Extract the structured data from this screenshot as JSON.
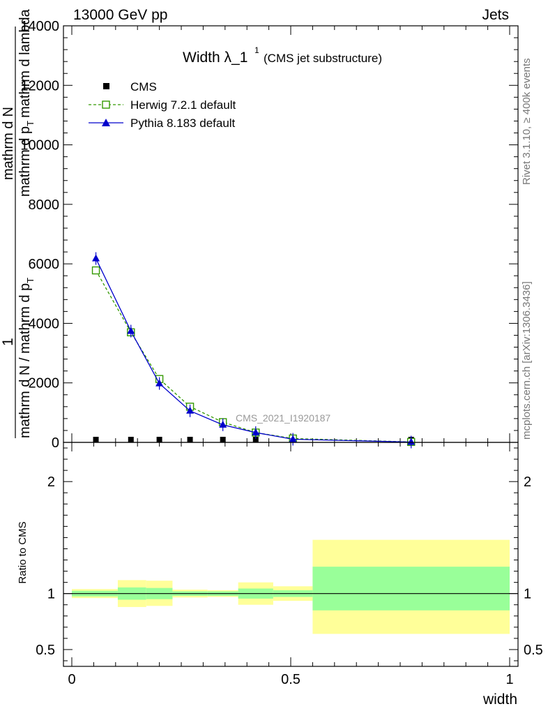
{
  "header": {
    "energy_label": "13000 GeV pp",
    "category_label": "Jets"
  },
  "side_labels": {
    "rivet": "Rivet 3.1.10, ≥ 400k events",
    "mcplots": "mcplots.cern.ch [arXiv:1306.3436]"
  },
  "chart_data": [
    {
      "type": "line",
      "title": "Width λ_1",
      "title_sup": "1",
      "subtitle": "(CMS jet substructure)",
      "watermark": "CMS_2021_I1920187",
      "ylabel_num": "1",
      "ylabel_lines": [
        "mathrm d N / mathrm d p_T",
        "mathrm d N",
        "mathrm d p_T mathrm d lambda"
      ],
      "ylabel_line1": "mathrm d N / mathrm d p_T",
      "ylabel_line2_a": "mathrm d",
      "ylabel_line2_b": "N",
      "ylabel_line3_a": "mathrm d p",
      "ylabel_line3_sub": "T",
      "ylabel_line3_b": "mathrm d lambda",
      "ylabel_line1_a": "mathrm d N / mathrm d p",
      "ylabel_line1_sub": "T",
      "xlim": [
        0,
        1
      ],
      "ylim": [
        0,
        14000
      ],
      "yticks": [
        0,
        2000,
        4000,
        6000,
        8000,
        10000,
        12000,
        14000
      ],
      "ytick_labels": [
        "0",
        "2000",
        "4000",
        "6000",
        "8000",
        "10000",
        "12000",
        "14000"
      ],
      "legend_position": "top-left",
      "bin_edges": [
        0,
        0.105,
        0.17,
        0.23,
        0.31,
        0.38,
        0.46,
        0.55,
        1.0
      ],
      "x": [
        0.055,
        0.135,
        0.2,
        0.27,
        0.345,
        0.42,
        0.505,
        0.775
      ],
      "series": [
        {
          "name": "CMS",
          "marker": "square-filled",
          "color": "#000000",
          "values": [
            0,
            0,
            0,
            0,
            0,
            0,
            0,
            0
          ]
        },
        {
          "name": "Herwig 7.2.1 default",
          "marker": "square-open",
          "color": "#339900",
          "line": "dashed",
          "values": [
            5780,
            3700,
            2130,
            1200,
            680,
            330,
            130,
            15
          ]
        },
        {
          "name": "Pythia 8.183 default",
          "marker": "triangle-filled",
          "color": "#0000cc",
          "line": "solid",
          "values": [
            6180,
            3740,
            1980,
            1060,
            590,
            330,
            105,
            12
          ]
        }
      ]
    },
    {
      "type": "area",
      "ylabel": "Ratio to CMS",
      "xlabel": "width",
      "xlim": [
        0,
        1
      ],
      "ylim": [
        0.35,
        2.35
      ],
      "yticks": [
        0.5,
        1,
        2
      ],
      "ytick_labels": [
        "0.5",
        "1",
        "2"
      ],
      "xticks": [
        0,
        0.5,
        1
      ],
      "xtick_labels": [
        "0",
        "0.5",
        "1"
      ],
      "reference": 1,
      "bands": [
        {
          "x0": 0.0,
          "x1": 0.105,
          "inner": [
            0.975,
            1.025
          ],
          "outer": [
            0.96,
            1.04
          ]
        },
        {
          "x0": 0.105,
          "x1": 0.17,
          "inner": [
            0.945,
            1.055
          ],
          "outer": [
            0.88,
            1.12
          ]
        },
        {
          "x0": 0.17,
          "x1": 0.23,
          "inner": [
            0.95,
            1.05
          ],
          "outer": [
            0.89,
            1.115
          ]
        },
        {
          "x0": 0.23,
          "x1": 0.31,
          "inner": [
            0.98,
            1.02
          ],
          "outer": [
            0.965,
            1.035
          ]
        },
        {
          "x0": 0.31,
          "x1": 0.38,
          "inner": [
            0.98,
            1.02
          ],
          "outer": [
            0.97,
            1.03
          ]
        },
        {
          "x0": 0.38,
          "x1": 0.46,
          "inner": [
            0.955,
            1.045
          ],
          "outer": [
            0.9,
            1.1
          ]
        },
        {
          "x0": 0.46,
          "x1": 0.55,
          "inner": [
            0.97,
            1.03
          ],
          "outer": [
            0.935,
            1.065
          ]
        },
        {
          "x0": 0.55,
          "x1": 1.0,
          "inner": [
            0.85,
            1.24
          ],
          "outer": [
            0.64,
            1.48
          ]
        }
      ]
    }
  ],
  "colors": {
    "inner_band": "#99ff99",
    "outer_band": "#ffff99"
  }
}
